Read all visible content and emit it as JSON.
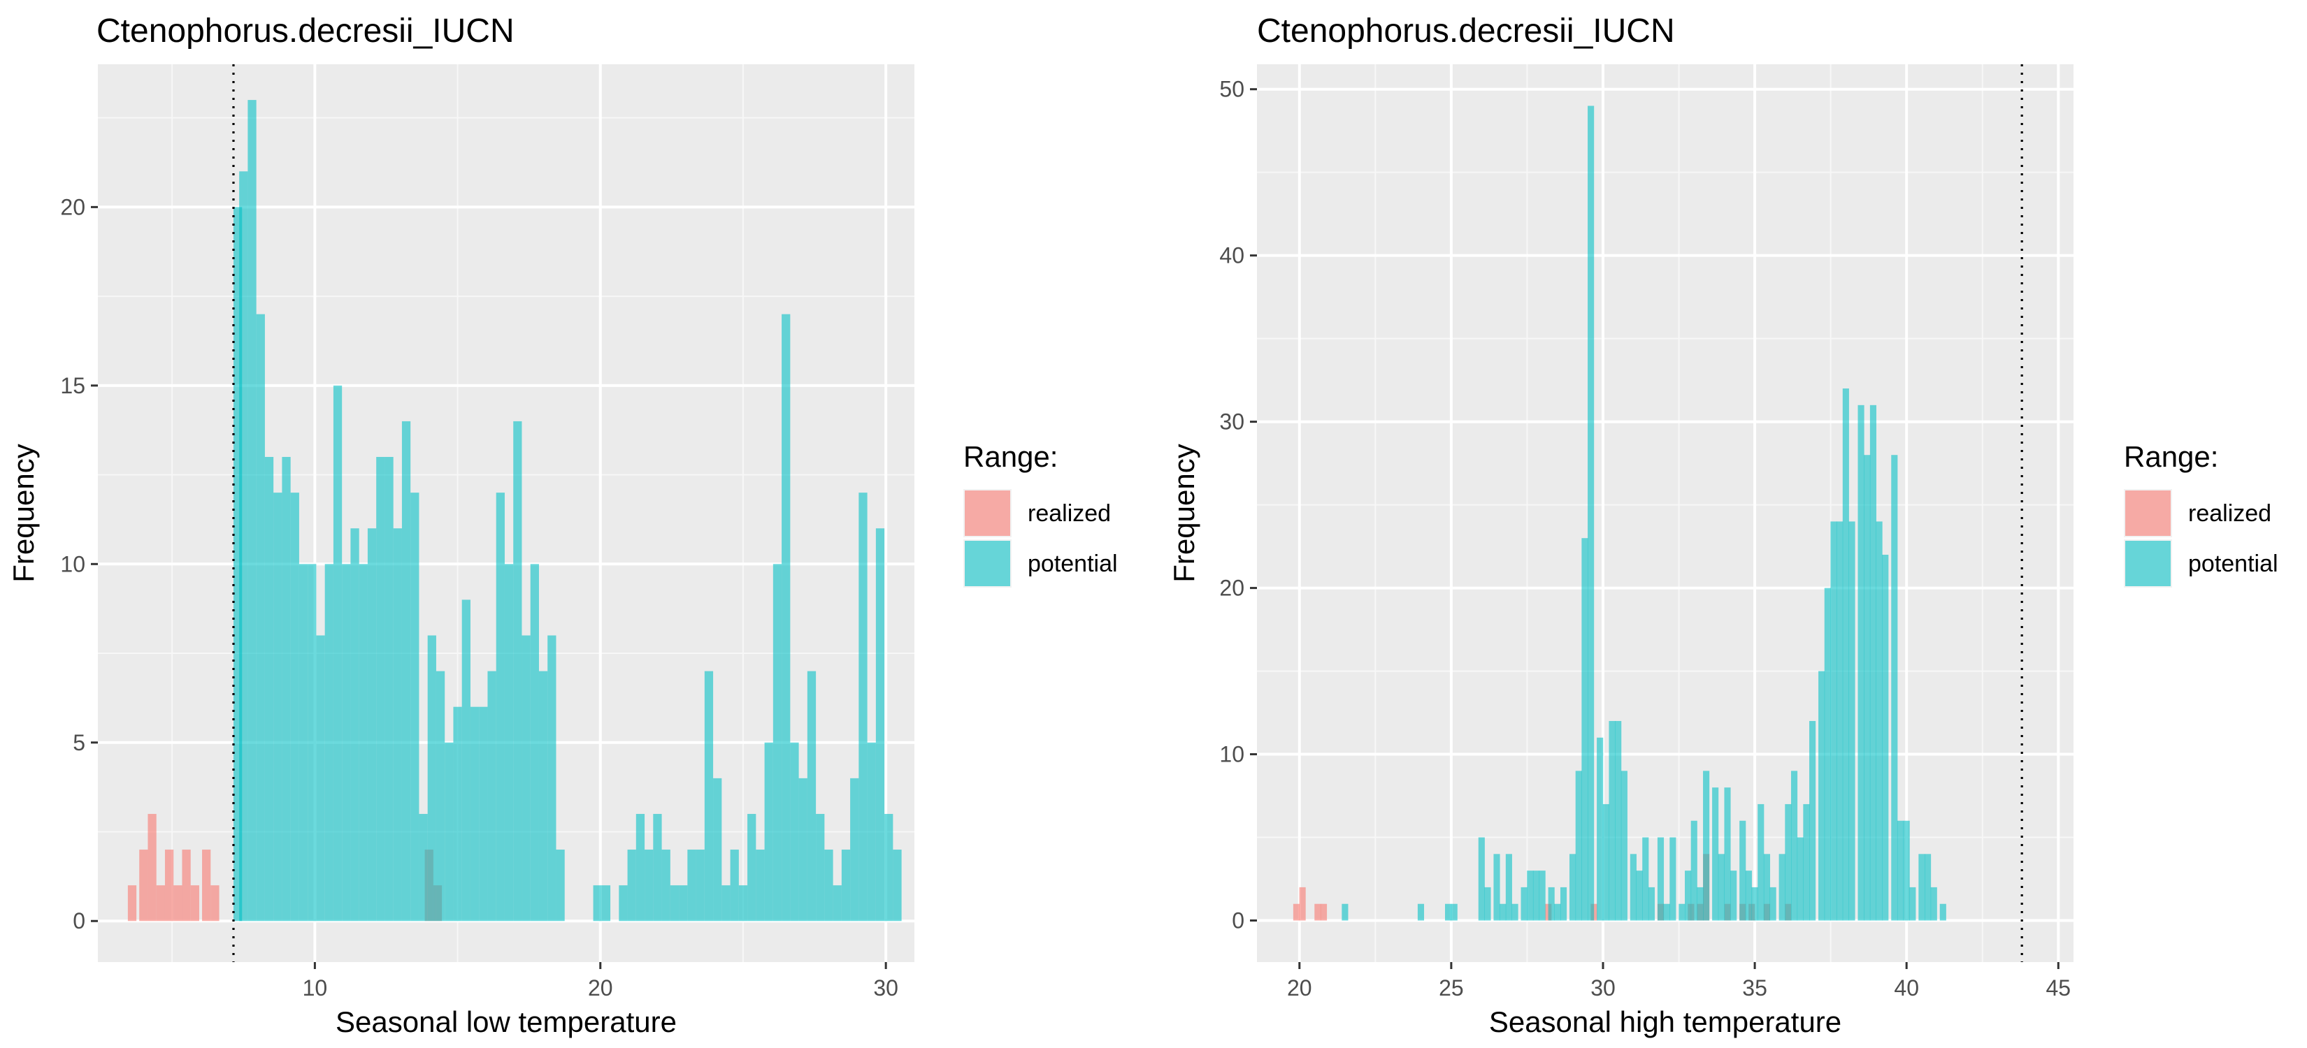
{
  "chart_data": [
    {
      "type": "bar",
      "title": "Ctenophorus.decresii_IUCN",
      "xlabel": "Seasonal low temperature",
      "ylabel": "Frequency",
      "xlim": [
        2.4,
        31.0
      ],
      "ylim": [
        -1.15,
        24.0
      ],
      "xticks": [
        10,
        20,
        30
      ],
      "yticks": [
        0,
        5,
        10,
        15,
        20
      ],
      "grid": true,
      "legend": {
        "title": "Range:",
        "position": "right",
        "entries": [
          "realized",
          "potential"
        ]
      },
      "vline": {
        "x": 7.15,
        "style": "dotted"
      },
      "series": [
        {
          "name": "realized",
          "color": "#F8766D",
          "bins": [
            [
              3.6,
              1
            ],
            [
              4.0,
              2
            ],
            [
              4.3,
              3
            ],
            [
              4.6,
              1
            ],
            [
              4.9,
              2
            ],
            [
              5.2,
              1
            ],
            [
              5.5,
              2
            ],
            [
              5.8,
              1
            ],
            [
              6.2,
              2
            ],
            [
              6.5,
              1
            ],
            [
              14.0,
              2
            ],
            [
              14.3,
              1
            ]
          ]
        },
        {
          "name": "potential",
          "color": "#00BFC4",
          "bins": [
            [
              7.3,
              20
            ],
            [
              7.5,
              21
            ],
            [
              7.8,
              23
            ],
            [
              8.1,
              17
            ],
            [
              8.4,
              13
            ],
            [
              8.7,
              12
            ],
            [
              9.0,
              13
            ],
            [
              9.3,
              12
            ],
            [
              9.6,
              10
            ],
            [
              9.9,
              10
            ],
            [
              10.2,
              8
            ],
            [
              10.5,
              10
            ],
            [
              10.8,
              15
            ],
            [
              11.1,
              10
            ],
            [
              11.4,
              11
            ],
            [
              11.7,
              10
            ],
            [
              12.0,
              11
            ],
            [
              12.3,
              13
            ],
            [
              12.6,
              13
            ],
            [
              12.9,
              11
            ],
            [
              13.2,
              14
            ],
            [
              13.5,
              12
            ],
            [
              13.8,
              3
            ],
            [
              14.1,
              8
            ],
            [
              14.4,
              7
            ],
            [
              14.7,
              5
            ],
            [
              15.0,
              6
            ],
            [
              15.3,
              9
            ],
            [
              15.6,
              6
            ],
            [
              15.9,
              6
            ],
            [
              16.2,
              7
            ],
            [
              16.5,
              12
            ],
            [
              16.8,
              10
            ],
            [
              17.1,
              14
            ],
            [
              17.4,
              8
            ],
            [
              17.7,
              10
            ],
            [
              18.0,
              7
            ],
            [
              18.3,
              8
            ],
            [
              18.6,
              2
            ],
            [
              19.9,
              1
            ],
            [
              20.2,
              1
            ],
            [
              20.8,
              1
            ],
            [
              21.1,
              2
            ],
            [
              21.4,
              3
            ],
            [
              21.7,
              2
            ],
            [
              22.0,
              3
            ],
            [
              22.3,
              2
            ],
            [
              22.6,
              1
            ],
            [
              22.9,
              1
            ],
            [
              23.2,
              2
            ],
            [
              23.5,
              2
            ],
            [
              23.8,
              7
            ],
            [
              24.1,
              4
            ],
            [
              24.4,
              1
            ],
            [
              24.7,
              2
            ],
            [
              25.0,
              1
            ],
            [
              25.3,
              3
            ],
            [
              25.6,
              2
            ],
            [
              25.9,
              5
            ],
            [
              26.2,
              10
            ],
            [
              26.5,
              17
            ],
            [
              26.8,
              5
            ],
            [
              27.1,
              4
            ],
            [
              27.4,
              7
            ],
            [
              27.7,
              3
            ],
            [
              28.0,
              2
            ],
            [
              28.3,
              1
            ],
            [
              28.6,
              2
            ],
            [
              28.9,
              4
            ],
            [
              29.2,
              12
            ],
            [
              29.5,
              5
            ],
            [
              29.8,
              11
            ],
            [
              30.1,
              3
            ],
            [
              30.4,
              2
            ]
          ]
        }
      ]
    },
    {
      "type": "bar",
      "title": "Ctenophorus.decresii_IUCN",
      "xlabel": "Seasonal high temperature",
      "ylabel": "Frequency",
      "xlim": [
        18.6,
        45.5
      ],
      "ylim": [
        -2.5,
        51.5
      ],
      "xticks": [
        20,
        25,
        30,
        35,
        40,
        45
      ],
      "yticks": [
        0,
        10,
        20,
        30,
        40,
        50
      ],
      "grid": true,
      "legend": {
        "title": "Range:",
        "position": "right",
        "entries": [
          "realized",
          "potential"
        ]
      },
      "vline": {
        "x": 43.8,
        "style": "dotted"
      },
      "series": [
        {
          "name": "realized",
          "color": "#F8766D",
          "bins": [
            [
              19.9,
              1
            ],
            [
              20.1,
              2
            ],
            [
              20.6,
              1
            ],
            [
              20.8,
              1
            ],
            [
              28.2,
              1
            ],
            [
              29.7,
              1
            ],
            [
              31.9,
              1
            ],
            [
              32.9,
              1
            ],
            [
              33.2,
              1
            ],
            [
              33.4,
              4
            ],
            [
              34.1,
              1
            ],
            [
              34.6,
              1
            ],
            [
              34.9,
              1
            ],
            [
              35.4,
              1
            ],
            [
              36.1,
              1
            ]
          ]
        },
        {
          "name": "potential",
          "color": "#00BFC4",
          "bins": [
            [
              21.5,
              1
            ],
            [
              24.0,
              1
            ],
            [
              24.9,
              1
            ],
            [
              25.1,
              1
            ],
            [
              26.0,
              5
            ],
            [
              26.2,
              2
            ],
            [
              26.5,
              4
            ],
            [
              26.7,
              1
            ],
            [
              26.9,
              4
            ],
            [
              27.1,
              1
            ],
            [
              27.4,
              2
            ],
            [
              27.6,
              3
            ],
            [
              27.8,
              3
            ],
            [
              28.0,
              3
            ],
            [
              28.3,
              2
            ],
            [
              28.5,
              1
            ],
            [
              28.7,
              2
            ],
            [
              29.0,
              4
            ],
            [
              29.2,
              9
            ],
            [
              29.4,
              23
            ],
            [
              29.6,
              49
            ],
            [
              29.9,
              11
            ],
            [
              30.1,
              7
            ],
            [
              30.3,
              12
            ],
            [
              30.5,
              12
            ],
            [
              30.7,
              9
            ],
            [
              31.0,
              4
            ],
            [
              31.2,
              3
            ],
            [
              31.4,
              5
            ],
            [
              31.6,
              2
            ],
            [
              31.9,
              5
            ],
            [
              32.1,
              1
            ],
            [
              32.3,
              5
            ],
            [
              32.6,
              1
            ],
            [
              32.8,
              3
            ],
            [
              33.0,
              6
            ],
            [
              33.2,
              2
            ],
            [
              33.4,
              9
            ],
            [
              33.7,
              8
            ],
            [
              33.9,
              4
            ],
            [
              34.1,
              8
            ],
            [
              34.3,
              3
            ],
            [
              34.6,
              6
            ],
            [
              34.8,
              3
            ],
            [
              35.0,
              2
            ],
            [
              35.2,
              7
            ],
            [
              35.4,
              4
            ],
            [
              35.6,
              2
            ],
            [
              35.9,
              4
            ],
            [
              36.1,
              7
            ],
            [
              36.3,
              9
            ],
            [
              36.5,
              5
            ],
            [
              36.7,
              7
            ],
            [
              36.9,
              12
            ],
            [
              37.2,
              15
            ],
            [
              37.4,
              20
            ],
            [
              37.6,
              24
            ],
            [
              37.8,
              24
            ],
            [
              38.0,
              32
            ],
            [
              38.2,
              24
            ],
            [
              38.5,
              31
            ],
            [
              38.7,
              28
            ],
            [
              38.9,
              31
            ],
            [
              39.1,
              24
            ],
            [
              39.3,
              22
            ],
            [
              39.6,
              28
            ],
            [
              39.8,
              6
            ],
            [
              40.0,
              6
            ],
            [
              40.2,
              2
            ],
            [
              40.5,
              4
            ],
            [
              40.7,
              4
            ],
            [
              40.9,
              2
            ],
            [
              41.2,
              1
            ]
          ]
        }
      ]
    }
  ]
}
